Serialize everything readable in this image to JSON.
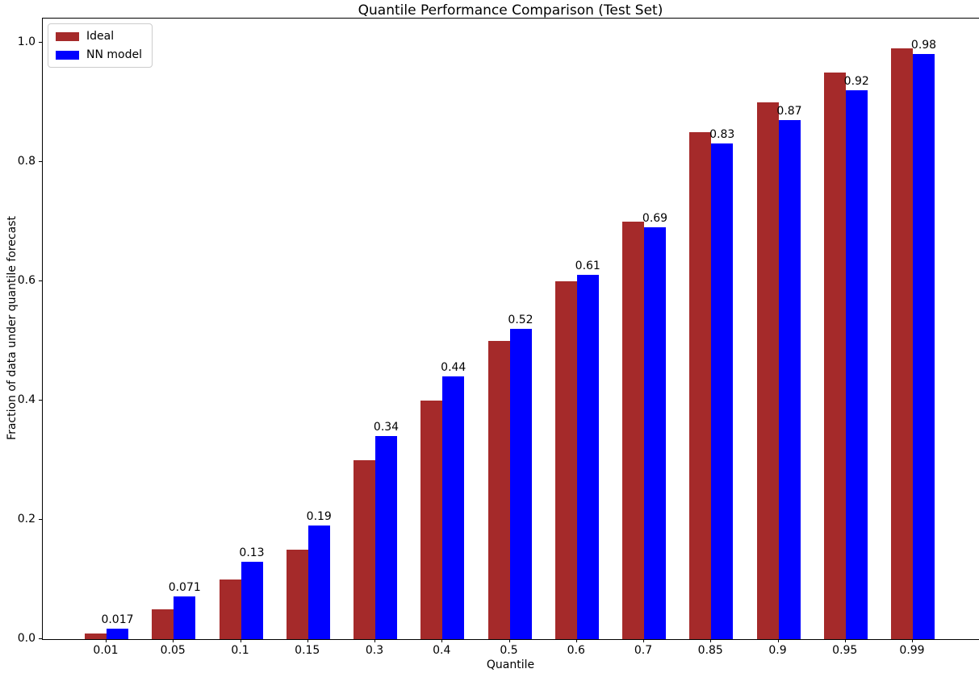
{
  "chart_data": {
    "type": "bar",
    "title": "Quantile Performance Comparison (Test Set)",
    "xlabel": "Quantile",
    "ylabel": "Fraction of data under quantile forecast",
    "categories": [
      "0.01",
      "0.05",
      "0.1",
      "0.15",
      "0.3",
      "0.4",
      "0.5",
      "0.6",
      "0.7",
      "0.85",
      "0.9",
      "0.95",
      "0.99"
    ],
    "series": [
      {
        "name": "Ideal",
        "color": "#a52a2a",
        "values": [
          0.01,
          0.05,
          0.1,
          0.15,
          0.3,
          0.4,
          0.5,
          0.6,
          0.7,
          0.85,
          0.9,
          0.95,
          0.99
        ]
      },
      {
        "name": "NN model",
        "color": "#0000ff",
        "values": [
          0.017,
          0.071,
          0.13,
          0.19,
          0.34,
          0.44,
          0.52,
          0.61,
          0.69,
          0.83,
          0.87,
          0.92,
          0.98
        ],
        "bar_labels": [
          "0.017",
          "0.071",
          "0.13",
          "0.19",
          "0.34",
          "0.44",
          "0.52",
          "0.61",
          "0.69",
          "0.83",
          "0.87",
          "0.92",
          "0.98"
        ]
      }
    ],
    "yticks": [
      "0.0",
      "0.2",
      "0.4",
      "0.6",
      "0.8",
      "1.0"
    ],
    "ytick_values": [
      0.0,
      0.2,
      0.4,
      0.6,
      0.8,
      1.0
    ],
    "ylim": [
      0,
      1.04
    ],
    "grid": false,
    "legend_position": "upper left",
    "background": "#ffffff",
    "spine_color": "#000000"
  }
}
